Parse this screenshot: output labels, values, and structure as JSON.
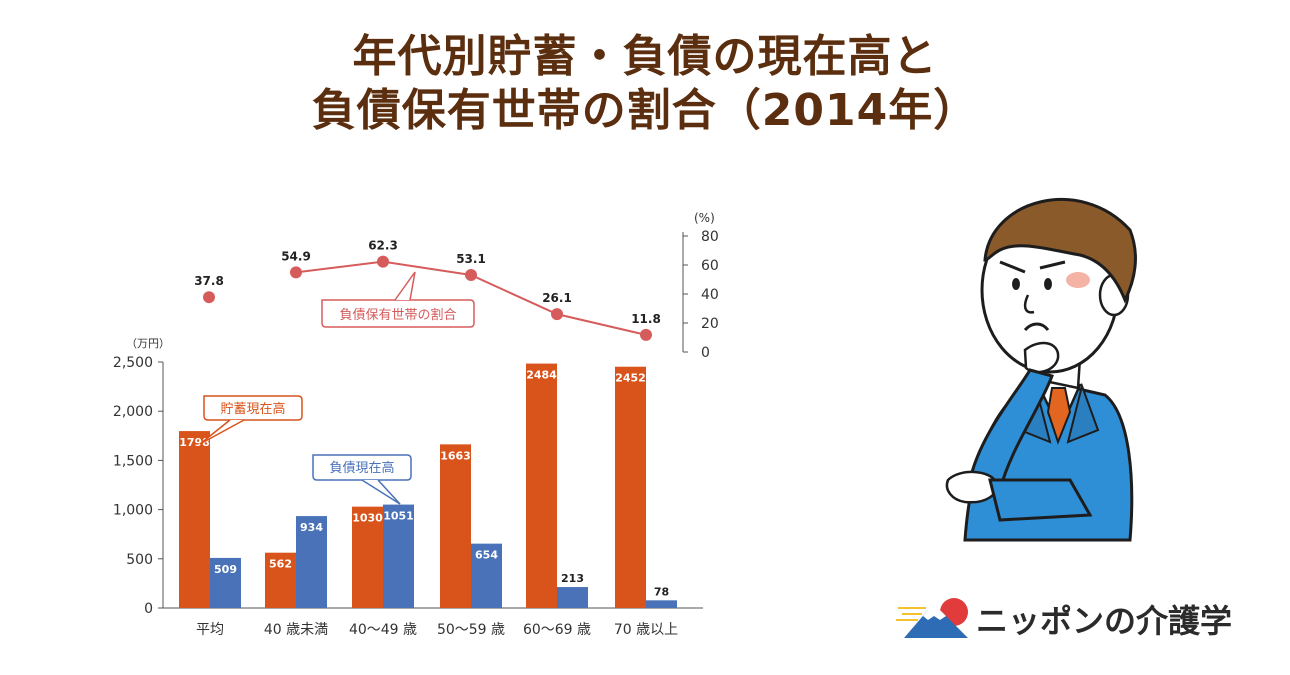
{
  "title": {
    "line1": "年代別貯蓄・負債の現在高と",
    "line2": "負債保有世帯の割合（2014年）"
  },
  "chart_data": {
    "type": "bar",
    "categories": [
      "平均",
      "40 歳未満",
      "40～49 歳",
      "50～59 歳",
      "60～69 歳",
      "70 歳以上"
    ],
    "series": [
      {
        "name": "貯蓄現在高",
        "values": [
          1798,
          562,
          1030,
          1663,
          2484,
          2452
        ],
        "color": "#d9541b"
      },
      {
        "name": "負債現在高",
        "values": [
          509,
          934,
          1051,
          654,
          213,
          78
        ],
        "color": "#4a72b8"
      }
    ],
    "line_series": {
      "name": "負債保有世帯の割合",
      "values": [
        37.8,
        54.9,
        62.3,
        53.1,
        26.1,
        11.8
      ],
      "labels": [
        "37.8",
        "54.9",
        "62.3",
        "53.1",
        "26.1",
        "11.8"
      ],
      "color": "#d65c5c"
    },
    "left_axis": {
      "unit": "（万円）",
      "ylim": [
        0,
        2500
      ],
      "ticks": [
        0,
        500,
        1000,
        1500,
        2000,
        2500
      ],
      "tick_labels": [
        "0",
        "500",
        "1,000",
        "1,500",
        "2,000",
        "2,500"
      ]
    },
    "right_axis": {
      "unit": "(%)",
      "ylim": [
        0,
        80
      ],
      "ticks": [
        0,
        20,
        40,
        60,
        80
      ],
      "tick_labels": [
        "0",
        "20",
        "40",
        "60",
        "80"
      ]
    },
    "callouts": {
      "savings": "貯蓄現在高",
      "debt": "負債現在高",
      "ratio": "負債保有世帯の割合"
    }
  },
  "logo": {
    "text": "ニッポンの介護学"
  },
  "colors": {
    "title": "#5a2e0e",
    "axis": "#555555",
    "savings": "#d9541b",
    "debt": "#4a72b8",
    "line": "#d65c5c"
  }
}
